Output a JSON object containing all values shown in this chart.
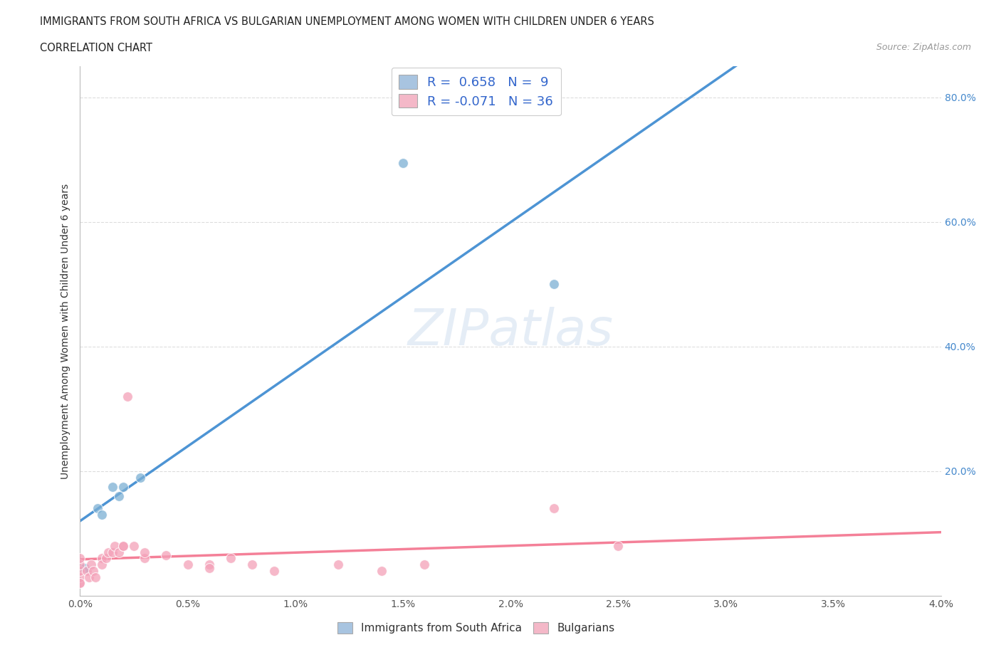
{
  "title_line1": "IMMIGRANTS FROM SOUTH AFRICA VS BULGARIAN UNEMPLOYMENT AMONG WOMEN WITH CHILDREN UNDER 6 YEARS",
  "title_line2": "CORRELATION CHART",
  "source_text": "Source: ZipAtlas.com",
  "ylabel": "Unemployment Among Women with Children Under 6 years",
  "xlim": [
    0.0,
    0.04
  ],
  "ylim": [
    0.0,
    0.85
  ],
  "xtick_labels": [
    "0.0%",
    "0.5%",
    "1.0%",
    "1.5%",
    "2.0%",
    "2.5%",
    "3.0%",
    "3.5%",
    "4.0%"
  ],
  "xtick_values": [
    0.0,
    0.005,
    0.01,
    0.015,
    0.02,
    0.025,
    0.03,
    0.035,
    0.04
  ],
  "ytick_labels": [
    "20.0%",
    "40.0%",
    "60.0%",
    "80.0%"
  ],
  "ytick_values": [
    0.2,
    0.4,
    0.6,
    0.8
  ],
  "blue_scatter_color": "#7bafd4",
  "blue_line_color": "#4d94d4",
  "pink_scatter_color": "#f4a0b8",
  "pink_line_color": "#f48098",
  "blue_legend_color": "#a8c4e0",
  "pink_legend_color": "#f4b8c8",
  "blue_x": [
    0.0002,
    0.0008,
    0.001,
    0.0015,
    0.0018,
    0.002,
    0.0028,
    0.015,
    0.022
  ],
  "blue_y": [
    0.045,
    0.14,
    0.13,
    0.175,
    0.16,
    0.175,
    0.19,
    0.695,
    0.5
  ],
  "pink_x": [
    0.0,
    0.0,
    0.0,
    0.0,
    0.0,
    0.0,
    0.0003,
    0.0004,
    0.0005,
    0.0006,
    0.0007,
    0.001,
    0.001,
    0.0012,
    0.0013,
    0.0015,
    0.0016,
    0.0018,
    0.002,
    0.002,
    0.0022,
    0.0025,
    0.003,
    0.005,
    0.006,
    0.007,
    0.008,
    0.009,
    0.012,
    0.014,
    0.016,
    0.022,
    0.025,
    0.003,
    0.004,
    0.006
  ],
  "pink_y": [
    0.02,
    0.03,
    0.04,
    0.05,
    0.06,
    0.02,
    0.04,
    0.03,
    0.05,
    0.04,
    0.03,
    0.06,
    0.05,
    0.06,
    0.07,
    0.07,
    0.08,
    0.07,
    0.08,
    0.08,
    0.32,
    0.08,
    0.06,
    0.05,
    0.05,
    0.06,
    0.05,
    0.04,
    0.05,
    0.04,
    0.05,
    0.14,
    0.08,
    0.07,
    0.065,
    0.045
  ],
  "background_color": "#ffffff",
  "grid_color": "#dddddd",
  "watermark_color": "#d0dff0",
  "watermark_text": "ZIPatlas"
}
